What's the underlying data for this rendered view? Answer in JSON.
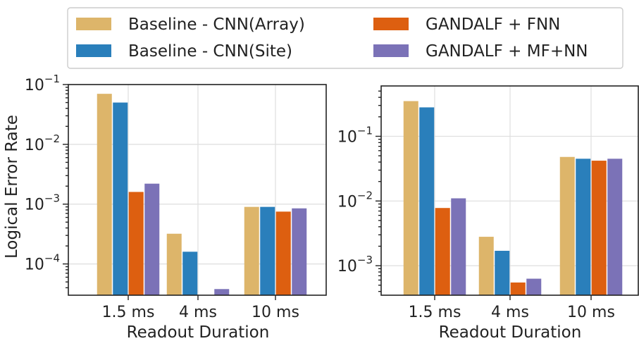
{
  "legend": {
    "entries": [
      {
        "label": "Baseline - CNN(Array)",
        "color": "#DDB56A"
      },
      {
        "label": "Baseline - CNN(Site)",
        "color": "#2A7FBB"
      },
      {
        "label": "GANDALF + FNN",
        "color": "#DD5F10"
      },
      {
        "label": "GANDALF + MF+NN",
        "color": "#7B72B7"
      }
    ]
  },
  "chart_data": [
    {
      "type": "bar",
      "scale": "log",
      "title": "",
      "xlabel": "Readout Duration",
      "ylabel": "Logical Error Rate",
      "categories": [
        "1.5 ms",
        "4 ms",
        "10 ms"
      ],
      "ylim": [
        3e-05,
        0.1
      ],
      "yticks": [
        {
          "value": 0.1,
          "base": "10",
          "exp": "−1"
        },
        {
          "value": 0.01,
          "base": "10",
          "exp": "−2"
        },
        {
          "value": 0.001,
          "base": "10",
          "exp": "−3"
        },
        {
          "value": 0.0001,
          "base": "10",
          "exp": "−4"
        }
      ],
      "series": [
        {
          "name": "Baseline - CNN(Array)",
          "values": [
            0.07,
            0.00032,
            0.0009
          ]
        },
        {
          "name": "Baseline - CNN(Site)",
          "values": [
            0.05,
            0.00016,
            0.0009
          ]
        },
        {
          "name": "GANDALF + FNN",
          "values": [
            0.0016,
            3e-05,
            0.00075
          ]
        },
        {
          "name": "GANDALF + MF+NN",
          "values": [
            0.0022,
            3.8e-05,
            0.00085
          ]
        }
      ]
    },
    {
      "type": "bar",
      "scale": "log",
      "title": "",
      "xlabel": "Readout Duration",
      "ylabel": "",
      "categories": [
        "1.5 ms",
        "4 ms",
        "10 ms"
      ],
      "ylim": [
        0.00035,
        0.6
      ],
      "yticks": [
        {
          "value": 0.1,
          "base": "10",
          "exp": "−1"
        },
        {
          "value": 0.01,
          "base": "10",
          "exp": "−2"
        },
        {
          "value": 0.001,
          "base": "10",
          "exp": "−3"
        }
      ],
      "series": [
        {
          "name": "Baseline - CNN(Array)",
          "values": [
            0.35,
            0.0028,
            0.048
          ]
        },
        {
          "name": "Baseline - CNN(Site)",
          "values": [
            0.28,
            0.0017,
            0.045
          ]
        },
        {
          "name": "GANDALF + FNN",
          "values": [
            0.0078,
            0.00055,
            0.042
          ]
        },
        {
          "name": "GANDALF + MF+NN",
          "values": [
            0.011,
            0.00063,
            0.045
          ]
        }
      ]
    }
  ]
}
